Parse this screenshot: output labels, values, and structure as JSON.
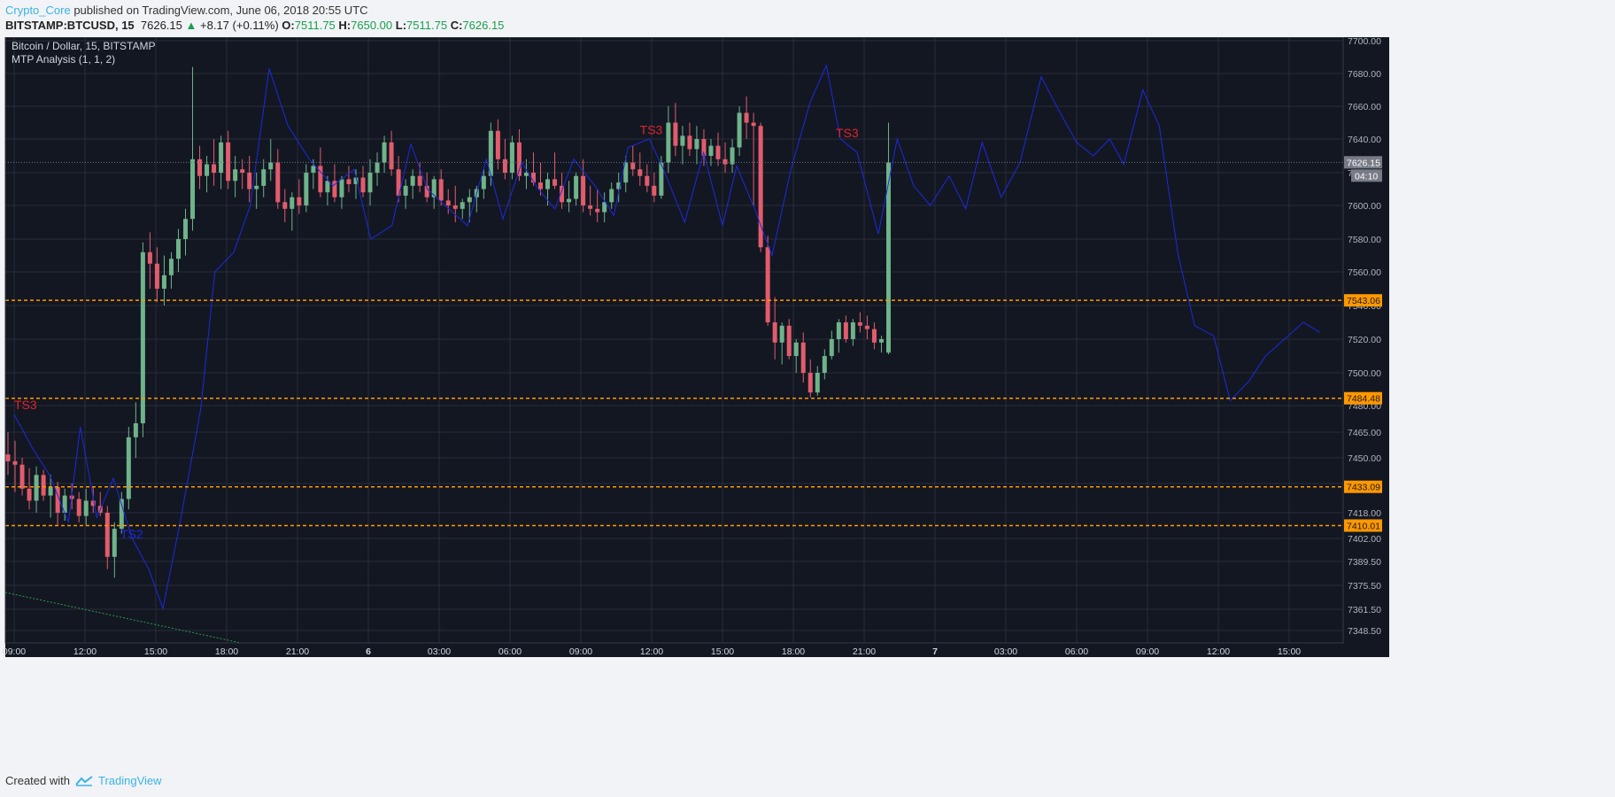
{
  "header": {
    "author": "Crypto_Core",
    "published_text": "published on TradingView.com, June 06, 2018 20:55 UTC"
  },
  "symbol_bar": {
    "symbol": "BITSTAMP:BTCUSD, 15",
    "last": "7626.15",
    "arrow": "▲",
    "change": "+8.17 (+0.11%)",
    "o_label": "O:",
    "o": "7511.75",
    "h_label": "H:",
    "h": "7650.00",
    "l_label": "L:",
    "l": "7511.75",
    "c_label": "C:",
    "c": "7626.15"
  },
  "footer": {
    "created_with": "Created with",
    "brand": "TradingView"
  },
  "colors": {
    "background": "#131722",
    "grid": "#2a2e39",
    "up": "#6fb38a",
    "down": "#e25c6c",
    "wave": "#1c2ae0",
    "level": "#ff9800",
    "text": "#d1d4dc"
  },
  "chart_data": {
    "type": "candlestick",
    "title": "Bitcoin / Dollar, 15, BITSTAMP",
    "indicator": "MTP Analysis (1, 1, 2)",
    "y_tick_labels": [
      "7700.00",
      "7680.00",
      "7660.00",
      "7640.00",
      "7620.00",
      "7600.00",
      "7580.00",
      "7560.00",
      "7540.00",
      "7520.00",
      "7500.00",
      "7480.00",
      "7465.00",
      "7450.00",
      "7435.00",
      "7418.00",
      "7402.00",
      "7389.50",
      "7375.50",
      "7361.50",
      "7348.50"
    ],
    "x_tick_labels": [
      "09:00",
      "12:00",
      "15:00",
      "18:00",
      "21:00",
      "6",
      "03:00",
      "06:00",
      "09:00",
      "12:00",
      "15:00",
      "18:00",
      "21:00",
      "7",
      "03:00",
      "06:00",
      "09:00",
      "12:00",
      "15:00"
    ],
    "last_price_label": "7626.15",
    "countdown_label": "04:10",
    "levels": [
      7543.06,
      7484.48,
      7433.09,
      7410.01
    ],
    "level_labels": [
      "7543.06",
      "7484.48",
      "7433.09",
      "7410.01"
    ],
    "annotations": [
      {
        "text": "TS3",
        "time_hours": 0.0,
        "price": 7478,
        "color": "#e0242e"
      },
      {
        "text": "TS2",
        "time_hours": 4.5,
        "price": 7402,
        "color": "#1c2ae0"
      },
      {
        "text": "TS3",
        "time_hours": 26.5,
        "price": 7643,
        "color": "#e0242e"
      },
      {
        "text": "TS3",
        "time_hours": 34.8,
        "price": 7641,
        "color": "#e0242e"
      }
    ],
    "wave_points": [
      [
        0.0,
        7475
      ],
      [
        0.8,
        7455
      ],
      [
        1.5,
        7440
      ],
      [
        2.3,
        7412
      ],
      [
        2.8,
        7468
      ],
      [
        3.5,
        7415
      ],
      [
        4.2,
        7438
      ],
      [
        5.0,
        7402
      ],
      [
        5.7,
        7385
      ],
      [
        6.3,
        7362
      ],
      [
        7.0,
        7410
      ],
      [
        7.9,
        7478
      ],
      [
        8.5,
        7560
      ],
      [
        9.3,
        7572
      ],
      [
        10.0,
        7600
      ],
      [
        10.8,
        7683
      ],
      [
        11.6,
        7648
      ],
      [
        12.5,
        7628
      ],
      [
        13.5,
        7612
      ],
      [
        14.4,
        7622
      ],
      [
        15.1,
        7580
      ],
      [
        16.0,
        7588
      ],
      [
        16.8,
        7637
      ],
      [
        17.5,
        7610
      ],
      [
        18.4,
        7598
      ],
      [
        19.2,
        7588
      ],
      [
        20.0,
        7628
      ],
      [
        20.7,
        7592
      ],
      [
        21.5,
        7626
      ],
      [
        22.2,
        7610
      ],
      [
        22.9,
        7598
      ],
      [
        23.7,
        7628
      ],
      [
        24.6,
        7612
      ],
      [
        25.4,
        7594
      ],
      [
        26.0,
        7635
      ],
      [
        26.9,
        7640
      ],
      [
        27.5,
        7622
      ],
      [
        28.4,
        7590
      ],
      [
        29.2,
        7632
      ],
      [
        30.0,
        7588
      ],
      [
        30.6,
        7624
      ],
      [
        31.3,
        7600
      ],
      [
        32.1,
        7570
      ],
      [
        32.9,
        7622
      ],
      [
        33.7,
        7662
      ],
      [
        34.4,
        7685
      ],
      [
        35.0,
        7640
      ],
      [
        35.7,
        7632
      ],
      [
        36.6,
        7583
      ],
      [
        37.4,
        7640
      ],
      [
        38.1,
        7612
      ],
      [
        38.8,
        7600
      ],
      [
        39.6,
        7618
      ],
      [
        40.3,
        7598
      ],
      [
        41.0,
        7638
      ],
      [
        41.8,
        7605
      ],
      [
        42.6,
        7626
      ],
      [
        43.5,
        7678
      ],
      [
        44.3,
        7656
      ],
      [
        45.0,
        7638
      ],
      [
        45.7,
        7630
      ],
      [
        46.4,
        7640
      ],
      [
        47.0,
        7625
      ],
      [
        47.8,
        7670
      ],
      [
        48.5,
        7648
      ],
      [
        49.3,
        7570
      ],
      [
        50.0,
        7528
      ],
      [
        50.8,
        7522
      ],
      [
        51.5,
        7483
      ],
      [
        52.3,
        7495
      ],
      [
        53.0,
        7510
      ],
      [
        53.8,
        7520
      ],
      [
        54.6,
        7530
      ],
      [
        55.3,
        7524
      ]
    ],
    "ohlc": [
      [
        7452,
        7465,
        7440,
        7448
      ],
      [
        7448,
        7460,
        7430,
        7446
      ],
      [
        7446,
        7450,
        7428,
        7432
      ],
      [
        7432,
        7444,
        7420,
        7425
      ],
      [
        7425,
        7445,
        7418,
        7440
      ],
      [
        7440,
        7443,
        7425,
        7428
      ],
      [
        7428,
        7440,
        7415,
        7433
      ],
      [
        7433,
        7436,
        7410,
        7418
      ],
      [
        7418,
        7432,
        7413,
        7428
      ],
      [
        7428,
        7435,
        7420,
        7426
      ],
      [
        7426,
        7430,
        7412,
        7416
      ],
      [
        7416,
        7432,
        7410,
        7425
      ],
      [
        7425,
        7433,
        7418,
        7422
      ],
      [
        7422,
        7430,
        7416,
        7418
      ],
      [
        7418,
        7422,
        7385,
        7392
      ],
      [
        7392,
        7412,
        7380,
        7408
      ],
      [
        7408,
        7430,
        7405,
        7426
      ],
      [
        7426,
        7468,
        7420,
        7462
      ],
      [
        7462,
        7482,
        7450,
        7470
      ],
      [
        7470,
        7578,
        7462,
        7572
      ],
      [
        7572,
        7584,
        7550,
        7565
      ],
      [
        7565,
        7575,
        7542,
        7550
      ],
      [
        7550,
        7570,
        7540,
        7558
      ],
      [
        7558,
        7572,
        7550,
        7568
      ],
      [
        7568,
        7586,
        7560,
        7580
      ],
      [
        7580,
        7598,
        7570,
        7592
      ],
      [
        7592,
        7684,
        7585,
        7628
      ],
      [
        7628,
        7636,
        7610,
        7618
      ],
      [
        7618,
        7630,
        7608,
        7625
      ],
      [
        7625,
        7640,
        7612,
        7620
      ],
      [
        7620,
        7642,
        7610,
        7638
      ],
      [
        7638,
        7645,
        7610,
        7615
      ],
      [
        7615,
        7630,
        7605,
        7622
      ],
      [
        7622,
        7628,
        7610,
        7620
      ],
      [
        7620,
        7630,
        7602,
        7610
      ],
      [
        7610,
        7620,
        7598,
        7612
      ],
      [
        7612,
        7628,
        7605,
        7622
      ],
      [
        7622,
        7640,
        7615,
        7626
      ],
      [
        7626,
        7634,
        7598,
        7602
      ],
      [
        7602,
        7610,
        7590,
        7598
      ],
      [
        7598,
        7608,
        7585,
        7605
      ],
      [
        7605,
        7616,
        7595,
        7600
      ],
      [
        7600,
        7625,
        7596,
        7620
      ],
      [
        7620,
        7628,
        7610,
        7624
      ],
      [
        7624,
        7635,
        7605,
        7608
      ],
      [
        7608,
        7618,
        7600,
        7615
      ],
      [
        7615,
        7625,
        7602,
        7605
      ],
      [
        7605,
        7618,
        7598,
        7616
      ],
      [
        7616,
        7624,
        7608,
        7613
      ],
      [
        7613,
        7622,
        7604,
        7617
      ],
      [
        7617,
        7624,
        7605,
        7608
      ],
      [
        7608,
        7628,
        7600,
        7620
      ],
      [
        7620,
        7632,
        7612,
        7626
      ],
      [
        7626,
        7642,
        7620,
        7638
      ],
      [
        7638,
        7645,
        7618,
        7622
      ],
      [
        7622,
        7630,
        7602,
        7606
      ],
      [
        7606,
        7616,
        7598,
        7612
      ],
      [
        7612,
        7622,
        7604,
        7618
      ],
      [
        7618,
        7626,
        7608,
        7612
      ],
      [
        7612,
        7620,
        7602,
        7605
      ],
      [
        7605,
        7618,
        7598,
        7616
      ],
      [
        7616,
        7622,
        7600,
        7603
      ],
      [
        7603,
        7610,
        7595,
        7600
      ],
      [
        7600,
        7612,
        7590,
        7598
      ],
      [
        7598,
        7604,
        7592,
        7602
      ],
      [
        7602,
        7610,
        7590,
        7605
      ],
      [
        7605,
        7612,
        7596,
        7610
      ],
      [
        7610,
        7622,
        7604,
        7618
      ],
      [
        7618,
        7650,
        7612,
        7645
      ],
      [
        7645,
        7652,
        7622,
        7628
      ],
      [
        7628,
        7640,
        7616,
        7620
      ],
      [
        7620,
        7642,
        7616,
        7638
      ],
      [
        7638,
        7646,
        7615,
        7618
      ],
      [
        7618,
        7628,
        7610,
        7620
      ],
      [
        7620,
        7632,
        7612,
        7614
      ],
      [
        7614,
        7626,
        7606,
        7610
      ],
      [
        7610,
        7620,
        7600,
        7616
      ],
      [
        7616,
        7632,
        7610,
        7612
      ],
      [
        7612,
        7620,
        7598,
        7602
      ],
      [
        7602,
        7615,
        7596,
        7604
      ],
      [
        7604,
        7620,
        7600,
        7618
      ],
      [
        7618,
        7628,
        7596,
        7600
      ],
      [
        7600,
        7612,
        7594,
        7598
      ],
      [
        7598,
        7610,
        7590,
        7596
      ],
      [
        7596,
        7608,
        7590,
        7602
      ],
      [
        7602,
        7614,
        7598,
        7610
      ],
      [
        7610,
        7620,
        7602,
        7614
      ],
      [
        7614,
        7630,
        7608,
        7626
      ],
      [
        7626,
        7636,
        7618,
        7622
      ],
      [
        7622,
        7632,
        7612,
        7618
      ],
      [
        7618,
        7625,
        7608,
        7612
      ],
      [
        7612,
        7620,
        7602,
        7606
      ],
      [
        7606,
        7630,
        7604,
        7626
      ],
      [
        7626,
        7660,
        7620,
        7650
      ],
      [
        7650,
        7662,
        7630,
        7636
      ],
      [
        7636,
        7648,
        7625,
        7642
      ],
      [
        7642,
        7650,
        7630,
        7634
      ],
      [
        7634,
        7648,
        7625,
        7640
      ],
      [
        7640,
        7646,
        7624,
        7630
      ],
      [
        7630,
        7640,
        7624,
        7636
      ],
      [
        7636,
        7644,
        7624,
        7628
      ],
      [
        7628,
        7638,
        7620,
        7625
      ],
      [
        7625,
        7640,
        7620,
        7635
      ],
      [
        7635,
        7660,
        7630,
        7656
      ],
      [
        7656,
        7666,
        7640,
        7650
      ],
      [
        7650,
        7656,
        7600,
        7648
      ],
      [
        7648,
        7650,
        7572,
        7575
      ],
      [
        7575,
        7582,
        7528,
        7530
      ],
      [
        7530,
        7545,
        7508,
        7518
      ],
      [
        7518,
        7530,
        7505,
        7528
      ],
      [
        7528,
        7532,
        7508,
        7510
      ],
      [
        7510,
        7520,
        7500,
        7518
      ],
      [
        7518,
        7524,
        7494,
        7500
      ],
      [
        7500,
        7508,
        7485,
        7488
      ],
      [
        7488,
        7504,
        7486,
        7500
      ],
      [
        7500,
        7514,
        7496,
        7510
      ],
      [
        7510,
        7525,
        7508,
        7520
      ],
      [
        7520,
        7532,
        7512,
        7530
      ],
      [
        7530,
        7534,
        7518,
        7520
      ],
      [
        7520,
        7532,
        7516,
        7530
      ],
      [
        7530,
        7536,
        7524,
        7528
      ],
      [
        7528,
        7534,
        7520,
        7526
      ],
      [
        7526,
        7530,
        7514,
        7518
      ],
      [
        7518,
        7522,
        7512,
        7520
      ],
      [
        7512,
        7650,
        7511,
        7626
      ]
    ]
  }
}
